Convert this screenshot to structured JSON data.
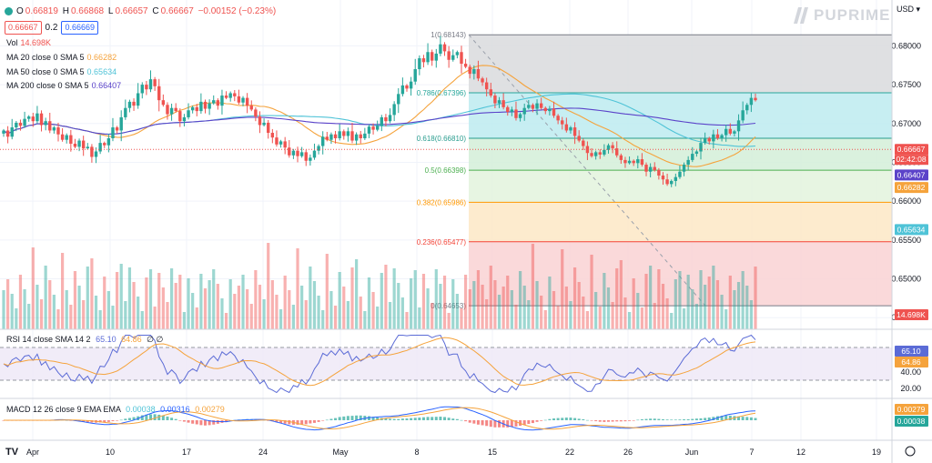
{
  "header": {
    "ohlc": {
      "o_label": "O",
      "o": "0.66819",
      "h_label": "H",
      "h": "0.66868",
      "l_label": "L",
      "l": "0.66657",
      "c_label": "C",
      "c": "0.66667",
      "change": "−0.00152 (−0.23%)"
    },
    "sell_price": "0.66667",
    "spread": "0.2",
    "buy_price": "0.66669",
    "currency": "USD"
  },
  "logo": {
    "text": "PUPRIME"
  },
  "indicators": {
    "vol": {
      "label": "Vol",
      "value": "14.698K"
    },
    "ma20": {
      "label": "MA 20 close 0 SMA 5",
      "value": "0.66282",
      "color": "#f5a33c"
    },
    "ma50": {
      "label": "MA 50 close 0 SMA 5",
      "value": "0.65634",
      "color": "#4fc3d7"
    },
    "ma200": {
      "label": "MA 200 close 0 SMA 5",
      "value": "0.66407",
      "color": "#5b43c9"
    },
    "rsi": {
      "label": "RSI 14 close SMA 14 2",
      "value1": "65.10",
      "value2": "64.86",
      "extra": "∅ ∅"
    },
    "macd": {
      "label": "MACD 12 26 close 9 EMA EMA",
      "value1": "0.00038",
      "value2": "0.00316",
      "value3": "0.00279"
    }
  },
  "price_axis": {
    "ticks": [
      "0.68000",
      "0.67500",
      "0.67000",
      "0.66500",
      "0.66000",
      "0.65500",
      "0.65000",
      "0.64500"
    ],
    "tag_last": {
      "value": "0.66667",
      "countdown": "02:42:08",
      "color": "#ef5350"
    },
    "tag_ma200": {
      "value": "0.66407",
      "color": "#5b43c9"
    },
    "tag_ma20": {
      "value": "0.66282",
      "color": "#f5a33c"
    },
    "tag_ma50": {
      "value": "0.65634",
      "color": "#4fc3d7"
    },
    "tag_vol": {
      "value": "14.698K",
      "color": "#ef5350"
    }
  },
  "rsi_axis": {
    "ticks": [
      "40.00",
      "20.00"
    ],
    "tag1": "65.10",
    "tag2": "64.86"
  },
  "macd_axis": {
    "tag1": "0.00279",
    "tag2": "0.00038"
  },
  "fib": [
    {
      "label": "1(0.68143)",
      "price": 0.68143,
      "color": "#787b86",
      "fill": "#d9dadd"
    },
    {
      "label": "0.786(0.67396)",
      "price": 0.67396,
      "color": "#26a69a",
      "fill": "#bdebf0"
    },
    {
      "label": "0.618(0.66810)",
      "price": 0.6681,
      "color": "#2a9d8f",
      "fill": "#d4efd8"
    },
    {
      "label": "0.5(0.66398)",
      "price": 0.66398,
      "color": "#4caf50",
      "fill": "#e3f3dd"
    },
    {
      "label": "0.382(0.65986)",
      "price": 0.65986,
      "color": "#ff9800",
      "fill": "#fde8c6"
    },
    {
      "label": "0.236(0.65477)",
      "price": 0.65477,
      "color": "#f44336",
      "fill": "#f9d2d3"
    },
    {
      "label": "0(0.64653)",
      "price": 0.64653,
      "color": "#787b86",
      "fill": null
    }
  ],
  "time_axis": [
    "Apr",
    "10",
    "17",
    "24",
    "May",
    "8",
    "15",
    "22",
    "26",
    "Jun",
    "7",
    "12",
    "19"
  ],
  "chart_data": {
    "type": "candlestick",
    "price_range": [
      0.6435,
      0.6845
    ],
    "moves": [
      0.0004,
      -0.0008,
      0.0012,
      0.0006,
      -0.0004,
      0.0009,
      0.0003,
      -0.0006,
      0.001,
      -0.0015,
      0.0005,
      -0.0012,
      0.0004,
      -0.0009,
      -0.0007,
      0.0006,
      -0.0011,
      -0.0004,
      0.0008,
      -0.001,
      0.0002,
      -0.0013,
      0.0007,
      0.0011,
      -0.0003,
      0.0009,
      0.0014,
      -0.0004,
      0.0017,
      0.0012,
      0.0008,
      -0.0005,
      0.0016,
      0.0011,
      -0.0006,
      0.0013,
      -0.0009,
      -0.0018,
      -0.0006,
      -0.0012,
      0.0008,
      -0.0004,
      -0.0013,
      0.0005,
      0.0009,
      0.0004,
      -0.0005,
      0.0012,
      -0.0009,
      0.0007,
      0.0004,
      -0.0007,
      0.0013,
      -0.0003,
      0.0006,
      -0.0004,
      -0.0008,
      0.0006,
      -0.001,
      -0.0005,
      -0.0009,
      -0.0011,
      0.0003,
      -0.0013,
      -0.0006,
      -0.0009,
      0.0004,
      -0.0008,
      -0.001,
      0.0006,
      -0.0007,
      0.0005,
      -0.0011,
      0.0004,
      0.0009,
      0.0006,
      0.0012,
      -0.0004,
      0.0007,
      -0.0005,
      0.0009,
      -0.0006,
      0.0006,
      -0.0012,
      0.0008,
      -0.0005,
      0.0006,
      0.0009,
      -0.0004,
      0.0005,
      0.0011,
      -0.0005,
      0.0008,
      0.0014,
      0.0013,
      0.0011,
      -0.0004,
      0.0009,
      0.0016,
      0.0014,
      -0.0005,
      0.0013,
      -0.0011,
      0.0009,
      0.0012,
      -0.0009,
      -0.0011,
      0.0006,
      0.0004,
      -0.0015,
      -0.0004,
      -0.0009,
      0.0006,
      -0.0012,
      -0.0005,
      -0.0009,
      -0.0008,
      -0.001,
      0.0004,
      -0.0009,
      -0.0006,
      0.0003,
      -0.0011,
      0.0005,
      0.0008,
      0.0004,
      -0.0005,
      0.0007,
      -0.0006,
      -0.0004,
      0.0003,
      -0.0009,
      -0.0006,
      -0.0005,
      -0.0008,
      0.0004,
      -0.0011,
      -0.0006,
      -0.0007,
      -0.0009,
      -0.0004,
      0.0005,
      -0.0003,
      0.0006,
      0.0006,
      -0.0004,
      -0.0009,
      -0.0006,
      -0.0004,
      0.0003,
      -0.0003,
      0.0005,
      -0.0007,
      -0.0009,
      0.0006,
      -0.0004,
      -0.0007,
      -0.0005,
      -0.0006,
      0.0004,
      0.0005,
      0.0007,
      0.0009,
      0.0006,
      0.0008,
      0.0003,
      0.0011,
      0.0006,
      -0.0004,
      0.0009,
      -0.0005,
      0.0004,
      0.0008,
      -0.0006,
      0.0003,
      0.0014,
      0.0013,
      0.0007,
      0.0009,
      -0.0003
    ],
    "start": 0.6687
  }
}
